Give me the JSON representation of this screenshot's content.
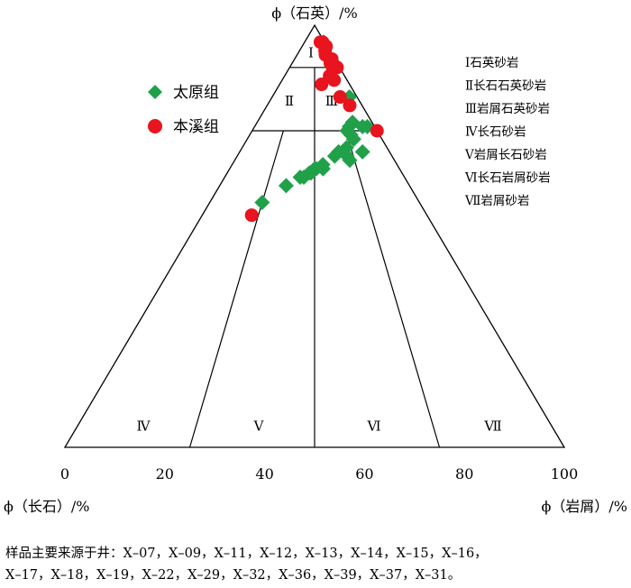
{
  "chart_data": {
    "type": "scatter",
    "diagram": "ternary",
    "apex_labels": {
      "top": "ϕ（石英）/%",
      "left": "ϕ（长石）/%",
      "right": "ϕ（岩屑）/%"
    },
    "bottom_ticks": [
      0,
      20,
      40,
      60,
      80,
      100
    ],
    "regions": [
      {
        "id": "I",
        "numeral": "Ⅰ",
        "label": "石英砂岩"
      },
      {
        "id": "II",
        "numeral": "Ⅱ",
        "label": "长石石英砂岩"
      },
      {
        "id": "III",
        "numeral": "Ⅲ",
        "label": "岩屑石英砂岩"
      },
      {
        "id": "IV",
        "numeral": "Ⅳ",
        "label": "长石砂岩"
      },
      {
        "id": "V",
        "numeral": "Ⅴ",
        "label": "岩屑长石砂岩"
      },
      {
        "id": "VI",
        "numeral": "Ⅵ",
        "label": "长石岩屑砂岩"
      },
      {
        "id": "VII",
        "numeral": "Ⅶ",
        "label": "岩屑砂岩"
      }
    ],
    "boundaries": {
      "quartz_pct": [
        90,
        75
      ],
      "ratio_pct": [
        25,
        50,
        75
      ]
    },
    "legend_position": "upper-left",
    "series": [
      {
        "name": "太原组",
        "marker": "diamond",
        "color": "#21a04a",
        "points": [
          [
            58,
            25
          ],
          [
            62,
            35
          ],
          [
            64,
            42
          ],
          [
            66,
            51
          ],
          [
            64,
            44
          ],
          [
            65,
            47
          ],
          [
            65,
            48
          ],
          [
            66,
            50
          ],
          [
            67,
            55
          ],
          [
            66,
            55
          ],
          [
            69,
            63
          ],
          [
            70,
            66
          ],
          [
            68,
            72
          ],
          [
            69,
            71
          ],
          [
            71,
            72
          ],
          [
            73,
            79
          ],
          [
            75,
            76
          ],
          [
            74,
            78
          ],
          [
            76,
            79
          ],
          [
            70,
            82
          ],
          [
            77,
            83
          ],
          [
            76,
            90
          ],
          [
            76,
            94
          ],
          [
            83,
            91
          ],
          [
            91,
            93
          ],
          [
            96,
            95
          ]
        ]
      },
      {
        "name": "本溪组",
        "marker": "circle",
        "color": "#e8141e",
        "points": [
          [
            96,
            79
          ],
          [
            96,
            90
          ],
          [
            94,
            85
          ],
          [
            95,
            96
          ],
          [
            93,
            81
          ],
          [
            91,
            85
          ],
          [
            90,
            95
          ],
          [
            92,
            93
          ],
          [
            90,
            86
          ],
          [
            88,
            75
          ],
          [
            87,
            80
          ],
          [
            86,
            60
          ],
          [
            83,
            80
          ],
          [
            81,
            87
          ],
          [
            75,
            100
          ],
          [
            55,
            22
          ]
        ]
      }
    ]
  },
  "footnote_lines": [
    "样品主要来源于井：X–07，X–09，X–11，X–12，X–13，X–14，X–15，X–16，",
    "X–17，X–18，X–19，X–22，X–29，X–32，X–36，X–39，X–37，X–31。"
  ]
}
